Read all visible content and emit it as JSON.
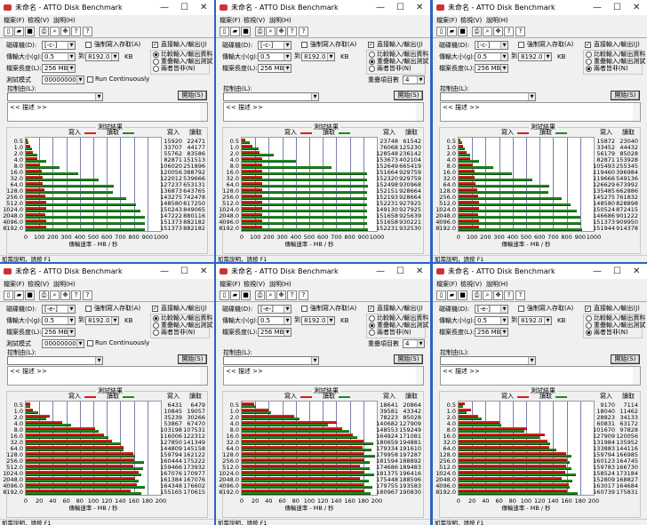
{
  "labels": {
    "menu": [
      "檔案(F)",
      "檢視(V)",
      "說明(H)"
    ],
    "drive": "磁碟機(D):",
    "transfer": "傳輸大小(g):",
    "to": "到",
    "kb": "KB",
    "file_length": "檔案長度(L):",
    "test_pattern": "測試模式",
    "force_write": "強制寫入存取(A)",
    "direct_io": "直接輸入/輸出(J)",
    "run_cont": "Run Continuously",
    "modes": [
      "比較輸入/輸出資料",
      "重疊輸入/輸出測試",
      "兩者皆非(N)"
    ],
    "queue": "重疊項目數",
    "controlled_by": "控制由(L):",
    "start": "開始(S)",
    "description": "<<   描述   >>",
    "results": "測試結果",
    "write": "寫入",
    "read": "讀取",
    "status": "如需說明，請按 F1",
    "minimize": "—",
    "maximize": "☐",
    "close": "✕"
  },
  "windows": [
    {
      "title": "未命名 - ATTO Disk Benchmark",
      "drive": "[-c-]",
      "from": "0.5",
      "to": "8192.0",
      "length": "256 MB",
      "mode": 0,
      "pattern": "00000000",
      "queue": null
    },
    {
      "title": "未命名 - ATTO Disk Benchmark",
      "drive": "[-c-]",
      "from": "0.5",
      "to": "8192.0",
      "length": "256 MB",
      "mode": 1,
      "pattern": null,
      "queue": "4"
    },
    {
      "title": "未命名 - ATTO Disk Benchmark",
      "drive": "[-c-]",
      "from": "0.5",
      "to": "8192.0",
      "length": "256 MB",
      "mode": 2,
      "pattern": null,
      "queue": null
    },
    {
      "title": "未命名 - ATTO Disk Benchmark",
      "drive": "[-e-]",
      "from": "0.5",
      "to": "8192.0",
      "length": "256 MB",
      "mode": 0,
      "pattern": "00000000",
      "queue": null
    },
    {
      "title": "未命名 - ATTO Disk Benchmark",
      "drive": "[-e-]",
      "from": "0.5",
      "to": "8192.0",
      "length": "256 MB",
      "mode": 1,
      "pattern": null,
      "queue": "4"
    },
    {
      "title": "未命名 - ATTO Disk Benchmark",
      "drive": "[-e-]",
      "from": "0.5",
      "to": "8192.0",
      "length": "256 MB",
      "mode": 2,
      "pattern": null,
      "queue": null
    }
  ],
  "chart_data": [
    {
      "type": "bar",
      "categories": [
        "0.5",
        "1.0",
        "2.0",
        "4.0",
        "8.0",
        "16.0",
        "32.0",
        "64.0",
        "128.0",
        "256.0",
        "512.0",
        "1024.0",
        "2048.0",
        "4096.0",
        "8192.0"
      ],
      "series": [
        {
          "name": "寫入",
          "values": [
            15920,
            33707,
            55762,
            82871,
            106020,
            120056,
            122012,
            127237,
            136873,
            143275,
            148580,
            150243,
            147222,
            151373,
            151373
          ]
        },
        {
          "name": "讀取",
          "values": [
            22471,
            44177,
            83586,
            151513,
            251896,
            388792,
            539666,
            653131,
            643765,
            742478,
            817250,
            849065,
            880116,
            882182,
            882182
          ]
        }
      ],
      "xlabel": "傳輸速率 - MB / 秒",
      "xlim": [
        0,
        1000
      ],
      "xticks": [
        "0",
        "100",
        "200",
        "300",
        "400",
        "500",
        "600",
        "700",
        "800",
        "900",
        "1000"
      ]
    },
    {
      "type": "bar",
      "categories": [
        "0.5",
        "1.0",
        "2.0",
        "4.0",
        "8.0",
        "16.0",
        "32.0",
        "64.0",
        "128.0",
        "256.0",
        "512.0",
        "1024.0",
        "2048.0",
        "4096.0",
        "8192.0"
      ],
      "series": [
        {
          "name": "寫入",
          "values": [
            23748,
            76068,
            128548,
            153673,
            152649,
            151664,
            152320,
            152498,
            152151,
            152193,
            152231,
            149130,
            151658,
            151658,
            152231
          ]
        },
        {
          "name": "讀取",
          "values": [
            61542,
            125230,
            236142,
            402104,
            665419,
            929759,
            929759,
            930968,
            928664,
            928664,
            927925,
            927925,
            925639,
            930221,
            932530
          ]
        }
      ],
      "xlabel": "傳輸速率 - MB / 秒",
      "xlim": [
        0,
        1000
      ],
      "xticks": [
        "0",
        "100",
        "200",
        "300",
        "400",
        "500",
        "600",
        "700",
        "800",
        "900",
        "1000"
      ]
    },
    {
      "type": "bar",
      "categories": [
        "0.5",
        "1.0",
        "2.0",
        "4.0",
        "8.0",
        "16.0",
        "32.0",
        "64.0",
        "128.0",
        "256.0",
        "512.0",
        "1024.0",
        "2048.0",
        "4096.0",
        "8192.0"
      ],
      "series": [
        {
          "name": "寫入",
          "values": [
            15872,
            33452,
            56179,
            82871,
            105493,
            119460,
            119666,
            126629,
            135485,
            145275,
            148580,
            150524,
            146686,
            151373,
            151944
          ]
        },
        {
          "name": "讀取",
          "values": [
            23040,
            44432,
            85028,
            153928,
            255345,
            396984,
            549136,
            673992,
            662886,
            761832,
            828898,
            872415,
            901222,
            909950,
            914378
          ]
        }
      ],
      "xlabel": "傳輸速率 - MB / 秒",
      "xlim": [
        0,
        1000
      ],
      "xticks": [
        "0",
        "100",
        "200",
        "300",
        "400",
        "500",
        "600",
        "700",
        "800",
        "900",
        "1000"
      ]
    },
    {
      "type": "bar",
      "categories": [
        "0.5",
        "1.0",
        "2.0",
        "4.0",
        "8.0",
        "16.0",
        "32.0",
        "64.0",
        "128.0",
        "256.0",
        "512.0",
        "1024.0",
        "2048.0",
        "4096.0",
        "8192.0"
      ],
      "series": [
        {
          "name": "寫入",
          "values": [
            6431,
            10845,
            35239,
            53867,
            103198,
            116006,
            127850,
            144809,
            159794,
            160444,
            159466,
            167076,
            161384,
            164348,
            155165
          ]
        },
        {
          "name": "讀取",
          "values": [
            6479,
            19057,
            30266,
            67470,
            107531,
            122312,
            141349,
            145158,
            162122,
            175222,
            173932,
            170977,
            167076,
            176602,
            170615
          ]
        }
      ],
      "xlabel": "傳輸速率 - MB / 秒",
      "xlim": [
        0,
        200
      ],
      "xticks": [
        "0",
        "20",
        "40",
        "60",
        "80",
        "100",
        "120",
        "140",
        "160",
        "180",
        "200"
      ]
    },
    {
      "type": "bar",
      "categories": [
        "0.5",
        "1.0",
        "2.0",
        "4.0",
        "8.0",
        "16.0",
        "32.0",
        "64.0",
        "128.0",
        "256.0",
        "512.0",
        "1024.0",
        "2048.0",
        "4096.0",
        "8192.0"
      ],
      "series": [
        {
          "name": "寫入",
          "values": [
            18641,
            39581,
            78223,
            140682,
            148553,
            164924,
            180659,
            179334,
            179958,
            181594,
            174686,
            181375,
            175448,
            179755,
            180967
          ]
        },
        {
          "name": "讀取",
          "values": [
            20864,
            43342,
            85028,
            127909,
            159249,
            171081,
            194881,
            191610,
            197287,
            188892,
            189483,
            196416,
            188596,
            193583,
            190830
          ]
        }
      ],
      "xlabel": "傳輸速率 - MB / 秒",
      "xlim": [
        0,
        200
      ],
      "xticks": [
        "0",
        "20",
        "40",
        "60",
        "80",
        "100",
        "120",
        "140",
        "160",
        "180",
        "200"
      ]
    },
    {
      "type": "bar",
      "categories": [
        "0.5",
        "1.0",
        "2.0",
        "4.0",
        "8.0",
        "16.0",
        "32.0",
        "64.0",
        "128.0",
        "256.0",
        "512.0",
        "1024.0",
        "2048.0",
        "4096.0",
        "8192.0"
      ],
      "series": [
        {
          "name": "寫入",
          "values": [
            9170,
            18040,
            28823,
            60831,
            101670,
            127909,
            131984,
            133883,
            159794,
            160123,
            159783,
            158524,
            152809,
            163017,
            160739
          ]
        },
        {
          "name": "讀取",
          "values": [
            7114,
            11462,
            34133,
            63172,
            97828,
            120056,
            135952,
            144116,
            166985,
            164745,
            166730,
            173184,
            168827,
            164684,
            175831
          ]
        }
      ],
      "xlabel": "傳輸速率 - MB / 秒",
      "xlim": [
        0,
        200
      ],
      "xticks": [
        "0",
        "20",
        "40",
        "60",
        "80",
        "100",
        "120",
        "140",
        "160",
        "180",
        "200"
      ]
    }
  ]
}
